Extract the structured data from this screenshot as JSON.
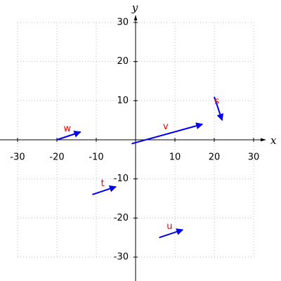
{
  "chart_data": {
    "type": "vector",
    "x_label": "x",
    "y_label": "y",
    "xlim": [
      -30,
      30
    ],
    "ylim": [
      -30,
      30
    ],
    "xticks": [
      -30,
      -20,
      -10,
      10,
      20,
      30
    ],
    "yticks": [
      -30,
      -20,
      -10,
      10,
      20,
      30
    ],
    "grid": true,
    "color": "#0000ee",
    "label_color": "#ee0000",
    "vectors": [
      {
        "name": "v",
        "start": [
          -1,
          -1
        ],
        "end": [
          17,
          4
        ]
      },
      {
        "name": "s",
        "start": [
          20,
          11
        ],
        "end": [
          22,
          5
        ]
      },
      {
        "name": "w",
        "start": [
          -20,
          0
        ],
        "end": [
          -14,
          2
        ]
      },
      {
        "name": "t",
        "start": [
          -11,
          -14
        ],
        "end": [
          -5,
          -12
        ]
      },
      {
        "name": "u",
        "start": [
          6,
          -25
        ],
        "end": [
          12,
          -23
        ]
      }
    ]
  }
}
